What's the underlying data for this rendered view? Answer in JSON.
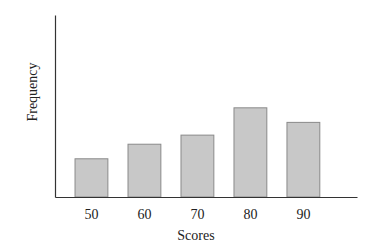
{
  "chart_data": {
    "type": "bar",
    "x_label": "Scores",
    "y_label": "Frequency",
    "categories": [
      "50",
      "60",
      "70",
      "80",
      "90"
    ],
    "values": [
      2.1,
      2.9,
      3.4,
      4.9,
      4.1
    ],
    "color": "#c8c8c8",
    "ylim": [
      0,
      10
    ],
    "tick_labels": "x"
  }
}
